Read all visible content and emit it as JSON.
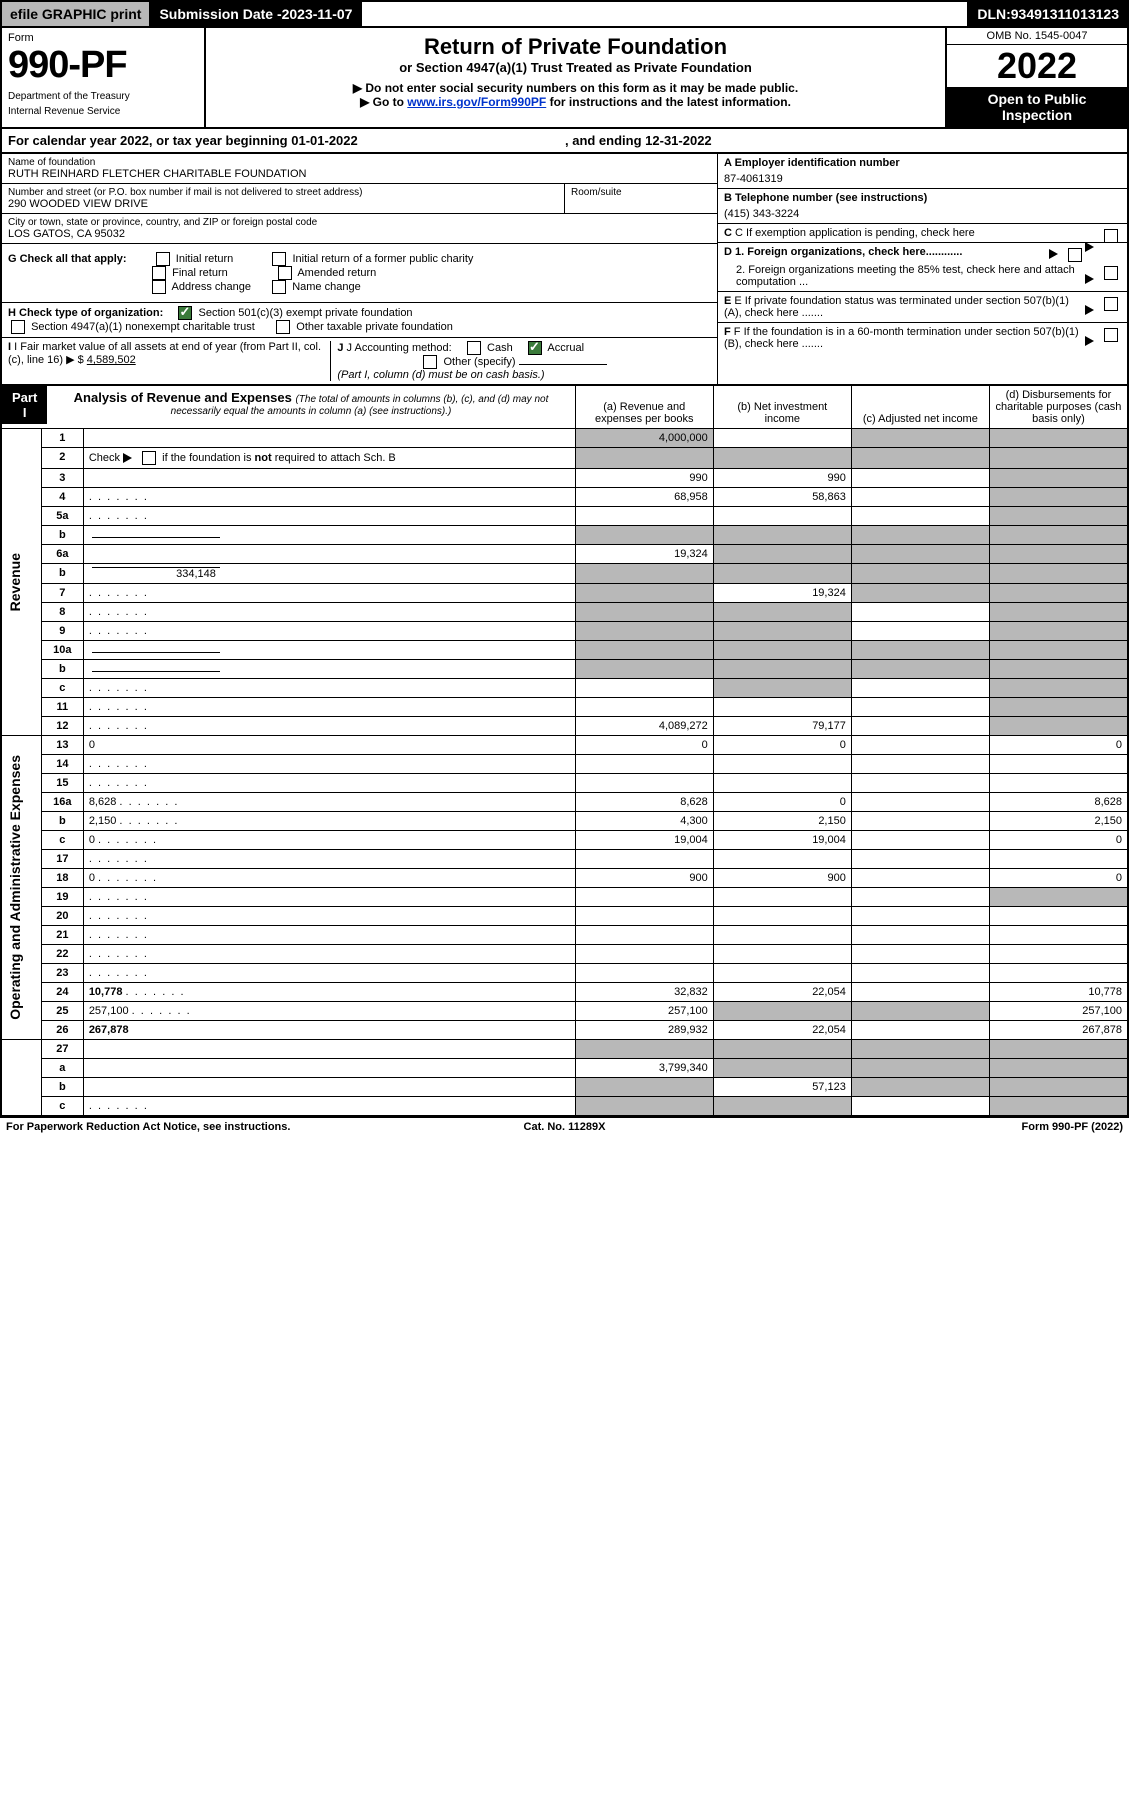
{
  "topbar": {
    "efile": "efile GRAPHIC print",
    "submission_label": "Submission Date - ",
    "submission_date": "2023-11-07",
    "dln_label": "DLN: ",
    "dln": "93491311013123"
  },
  "header": {
    "form_label": "Form",
    "form_number": "990-PF",
    "dept1": "Department of the Treasury",
    "dept2": "Internal Revenue Service",
    "title": "Return of Private Foundation",
    "subtitle": "or Section 4947(a)(1) Trust Treated as Private Foundation",
    "instr1": "▶ Do not enter social security numbers on this form as it may be made public.",
    "instr2_pre": "▶ Go to ",
    "instr2_link": "www.irs.gov/Form990PF",
    "instr2_post": " for instructions and the latest information.",
    "omb": "OMB No. 1545-0047",
    "year": "2022",
    "open": "Open to Public Inspection"
  },
  "calendar": {
    "pre": "For calendar year 2022, or tax year beginning ",
    "begin": "01-01-2022",
    "mid": " , and ending ",
    "end": "12-31-2022"
  },
  "id_block": {
    "name_label": "Name of foundation",
    "name": "RUTH REINHARD FLETCHER CHARITABLE FOUNDATION",
    "addr_label": "Number and street (or P.O. box number if mail is not delivered to street address)",
    "addr": "290 WOODED VIEW DRIVE",
    "room_label": "Room/suite",
    "city_label": "City or town, state or province, country, and ZIP or foreign postal code",
    "city": "LOS GATOS, CA  95032",
    "A_label": "A Employer identification number",
    "A_value": "87-4061319",
    "B_label": "B Telephone number (see instructions)",
    "B_value": "(415) 343-3224",
    "C_label": "C If exemption application is pending, check here",
    "G_label": "G Check all that apply:",
    "G_opts": [
      "Initial return",
      "Final return",
      "Address change",
      "Initial return of a former public charity",
      "Amended return",
      "Name change"
    ],
    "D1": "D 1. Foreign organizations, check here............",
    "D2": "2. Foreign organizations meeting the 85% test, check here and attach computation ...",
    "H_label": "H Check type of organization:",
    "H_opt1": "Section 501(c)(3) exempt private foundation",
    "H_opt2": "Section 4947(a)(1) nonexempt charitable trust",
    "H_opt3": "Other taxable private foundation",
    "E_label": "E If private foundation status was terminated under section 507(b)(1)(A), check here .......",
    "I_label": "I Fair market value of all assets at end of year (from Part II, col. (c), line 16) ▶ $",
    "I_value": "4,589,502",
    "J_label": "J Accounting method:",
    "J_cash": "Cash",
    "J_accrual": "Accrual",
    "J_other": "Other (specify)",
    "J_note": "(Part I, column (d) must be on cash basis.)",
    "F_label": "F If the foundation is in a 60-month termination under section 507(b)(1)(B), check here ......."
  },
  "part1": {
    "title_label": "Part I",
    "title": "Analysis of Revenue and Expenses ",
    "title_small": "(The total of amounts in columns (b), (c), and (d) may not necessarily equal the amounts in column (a) (see instructions).)",
    "col_a": "(a)  Revenue and expenses per books",
    "col_b": "(b)  Net investment income",
    "col_c": "(c)  Adjusted net income",
    "col_d": "(d)  Disbursements for charitable purposes (cash basis only)",
    "side_revenue": "Revenue",
    "side_oae": "Operating and Administrative Expenses",
    "footnote": "For Paperwork Reduction Act Notice, see instructions.",
    "cat": "Cat. No. 11289X",
    "form_foot": "Form 990-PF (2022)"
  },
  "rows": {
    "r1": {
      "n": "1",
      "d": "",
      "a": "4,000,000",
      "b": "",
      "c": "",
      "sa": true,
      "sc": true,
      "sd": true
    },
    "r2": {
      "n": "2",
      "d": "",
      "a": "",
      "b": "",
      "c": "",
      "sa": true,
      "sb": true,
      "sc": true,
      "sd": true,
      "dots": true,
      "bolditalic": true
    },
    "r3": {
      "n": "3",
      "d": "",
      "a": "990",
      "b": "990",
      "c": "",
      "sd": true
    },
    "r4": {
      "n": "4",
      "d": "",
      "a": "68,958",
      "b": "58,863",
      "c": "",
      "sd": true,
      "dots": true
    },
    "r5a": {
      "n": "5a",
      "d": "",
      "a": "",
      "b": "",
      "c": "",
      "sd": true,
      "dots": true
    },
    "r5b": {
      "n": "b",
      "d": "",
      "a": "",
      "b": "",
      "c": "",
      "sa": true,
      "sb": true,
      "sc": true,
      "sd": true,
      "subline": true
    },
    "r6a": {
      "n": "6a",
      "d": "",
      "a": "19,324",
      "b": "",
      "c": "",
      "sb": true,
      "sc": true,
      "sd": true
    },
    "r6b": {
      "n": "b",
      "d": "",
      "sub": "334,148",
      "a": "",
      "b": "",
      "c": "",
      "sa": true,
      "sb": true,
      "sc": true,
      "sd": true,
      "subline": true
    },
    "r7": {
      "n": "7",
      "d": "",
      "a": "",
      "b": "19,324",
      "c": "",
      "sa": true,
      "sc": true,
      "sd": true,
      "dots": true
    },
    "r8": {
      "n": "8",
      "d": "",
      "a": "",
      "b": "",
      "c": "",
      "sa": true,
      "sb": true,
      "sd": true,
      "dots": true
    },
    "r9": {
      "n": "9",
      "d": "",
      "a": "",
      "b": "",
      "c": "",
      "sa": true,
      "sb": true,
      "sd": true,
      "dots": true
    },
    "r10a": {
      "n": "10a",
      "d": "",
      "a": "",
      "b": "",
      "c": "",
      "sa": true,
      "sb": true,
      "sc": true,
      "sd": true,
      "subline": true
    },
    "r10b": {
      "n": "b",
      "d": "",
      "a": "",
      "b": "",
      "c": "",
      "sa": true,
      "sb": true,
      "sc": true,
      "sd": true,
      "dots": true,
      "subline": true
    },
    "r10c": {
      "n": "c",
      "d": "",
      "a": "",
      "b": "",
      "c": "",
      "sb": true,
      "sd": true,
      "dots": true
    },
    "r11": {
      "n": "11",
      "d": "",
      "a": "",
      "b": "",
      "c": "",
      "sd": true,
      "dots": true
    },
    "r12": {
      "n": "12",
      "d": "",
      "a": "4,089,272",
      "b": "79,177",
      "c": "",
      "sd": true,
      "bold": true,
      "dots": true
    },
    "r13": {
      "n": "13",
      "d": "0",
      "a": "0",
      "b": "0",
      "c": ""
    },
    "r14": {
      "n": "14",
      "d": "",
      "a": "",
      "b": "",
      "c": "",
      "dots": true
    },
    "r15": {
      "n": "15",
      "d": "",
      "a": "",
      "b": "",
      "c": "",
      "dots": true
    },
    "r16a": {
      "n": "16a",
      "d": "8,628",
      "a": "8,628",
      "b": "0",
      "c": "",
      "dots": true
    },
    "r16b": {
      "n": "b",
      "d": "2,150",
      "a": "4,300",
      "b": "2,150",
      "c": "",
      "dots": true
    },
    "r16c": {
      "n": "c",
      "d": "0",
      "a": "19,004",
      "b": "19,004",
      "c": "",
      "dots": true
    },
    "r17": {
      "n": "17",
      "d": "",
      "a": "",
      "b": "",
      "c": "",
      "dots": true
    },
    "r18": {
      "n": "18",
      "d": "0",
      "a": "900",
      "b": "900",
      "c": "",
      "dots": true
    },
    "r19": {
      "n": "19",
      "d": "",
      "a": "",
      "b": "",
      "c": "",
      "sd": true,
      "dots": true
    },
    "r20": {
      "n": "20",
      "d": "",
      "a": "",
      "b": "",
      "c": "",
      "dots": true
    },
    "r21": {
      "n": "21",
      "d": "",
      "a": "",
      "b": "",
      "c": "",
      "dots": true
    },
    "r22": {
      "n": "22",
      "d": "",
      "a": "",
      "b": "",
      "c": "",
      "dots": true
    },
    "r23": {
      "n": "23",
      "d": "",
      "a": "",
      "b": "",
      "c": "",
      "dots": true
    },
    "r24": {
      "n": "24",
      "d": "10,778",
      "a": "32,832",
      "b": "22,054",
      "c": "",
      "bold": true,
      "dots": true
    },
    "r25": {
      "n": "25",
      "d": "257,100",
      "a": "257,100",
      "b": "",
      "c": "",
      "sb": true,
      "sc": true,
      "dots": true
    },
    "r26": {
      "n": "26",
      "d": "267,878",
      "a": "289,932",
      "b": "22,054",
      "c": "",
      "bold": true
    },
    "r27": {
      "n": "27",
      "d": "",
      "a": "",
      "b": "",
      "c": "",
      "sa": true,
      "sb": true,
      "sc": true,
      "sd": true
    },
    "r27a": {
      "n": "a",
      "d": "",
      "a": "3,799,340",
      "b": "",
      "c": "",
      "sb": true,
      "sc": true,
      "sd": true,
      "bold": true
    },
    "r27b": {
      "n": "b",
      "d": "",
      "a": "",
      "b": "57,123",
      "c": "",
      "sa": true,
      "sc": true,
      "sd": true,
      "bold": true
    },
    "r27c": {
      "n": "c",
      "d": "",
      "a": "",
      "b": "",
      "c": "",
      "sa": true,
      "sb": true,
      "sd": true,
      "bold": true,
      "dots": true
    }
  },
  "row_groups": {
    "revenue": [
      "r1",
      "r2",
      "r3",
      "r4",
      "r5a",
      "r5b",
      "r6a",
      "r6b",
      "r7",
      "r8",
      "r9",
      "r10a",
      "r10b",
      "r10c",
      "r11",
      "r12"
    ],
    "oae": [
      "r13",
      "r14",
      "r15",
      "r16a",
      "r16b",
      "r16c",
      "r17",
      "r18",
      "r19",
      "r20",
      "r21",
      "r22",
      "r23",
      "r24",
      "r25",
      "r26"
    ],
    "bottom": [
      "r27",
      "r27a",
      "r27b",
      "r27c"
    ]
  },
  "styling": {
    "text_color": "#000000",
    "bg_color": "#ffffff",
    "shade_color": "#b8b8b8",
    "black_fill": "#000000",
    "link_color": "#0033cc",
    "check_color": "#3a7a3a",
    "border_width_outer": 2,
    "border_width_inner": 1,
    "font_family": "Arial, Helvetica, sans-serif",
    "font_size_body": 11,
    "font_size_formnum": 38,
    "font_size_year": 36,
    "font_size_title": 22
  }
}
